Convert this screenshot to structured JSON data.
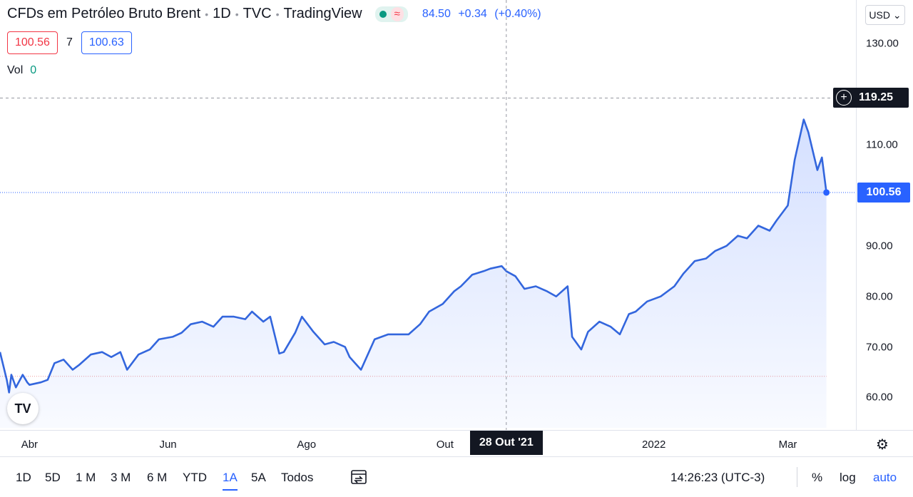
{
  "legend": {
    "title": "CFDs em Petróleo Bruto Brent",
    "interval": "1D",
    "source": "TVC",
    "brand": "TradingView",
    "approx_symbol": "≈",
    "price": "84.50",
    "change": "+0.34",
    "change_pct": "(+0.40%)"
  },
  "quote": {
    "bid": "100.56",
    "spread": "7",
    "ask": "100.63"
  },
  "volume": {
    "label": "Vol",
    "value": "0"
  },
  "currency": "USD",
  "crosshair": {
    "price_label": "119.25",
    "date_label": "28 Out '21"
  },
  "last_price_label": "100.56",
  "range_buttons": [
    {
      "label": "1D",
      "active": false
    },
    {
      "label": "5D",
      "active": false
    },
    {
      "label": "1 M",
      "active": false
    },
    {
      "label": "3 M",
      "active": false
    },
    {
      "label": "6 M",
      "active": false
    },
    {
      "label": "YTD",
      "active": false
    },
    {
      "label": "1A",
      "active": true
    },
    {
      "label": "5A",
      "active": false
    },
    {
      "label": "Todos",
      "active": false
    }
  ],
  "clock": "14:26:23 (UTC-3)",
  "controls": {
    "percent": "%",
    "log": "log",
    "auto": "auto"
  },
  "colors": {
    "line": "#3366dd",
    "area": "#2962ff",
    "last": "#2962ff",
    "low_line": "#ef9a9a"
  },
  "chart_data": {
    "type": "area",
    "ylim": [
      54,
      133
    ],
    "yticks": [
      60,
      70,
      80,
      90,
      100,
      110,
      120,
      130
    ],
    "ytick_labels": [
      "60.00",
      "70.00",
      "80.00",
      "90.00",
      "",
      "110.00",
      "",
      "130.00"
    ],
    "xlim": [
      "2021-03-19",
      "2022-03-31"
    ],
    "xticks": [
      {
        "date": "2021-04-01",
        "label": "Abr"
      },
      {
        "date": "2021-06-01",
        "label": "Jun"
      },
      {
        "date": "2021-08-01",
        "label": "Ago"
      },
      {
        "date": "2021-10-01",
        "label": "Out"
      },
      {
        "date": "2022-01-01",
        "label": "2022"
      },
      {
        "date": "2022-03-01",
        "label": "Mar"
      }
    ],
    "crosshair": {
      "date": "2021-10-28",
      "price": 119.25
    },
    "last_value": 100.56,
    "low_reference": 64.2,
    "series": [
      {
        "x": [
          "2021-03-19",
          "2021-03-22",
          "2021-03-23",
          "2021-03-24",
          "2021-03-26",
          "2021-03-29",
          "2021-03-31",
          "2021-04-01",
          "2021-04-06",
          "2021-04-09",
          "2021-04-12",
          "2021-04-16",
          "2021-04-20",
          "2021-04-23",
          "2021-04-28",
          "2021-05-03",
          "2021-05-07",
          "2021-05-11",
          "2021-05-14",
          "2021-05-19",
          "2021-05-24",
          "2021-05-28",
          "2021-06-03",
          "2021-06-07",
          "2021-06-11",
          "2021-06-16",
          "2021-06-21",
          "2021-06-25",
          "2021-06-30",
          "2021-07-05",
          "2021-07-08",
          "2021-07-13",
          "2021-07-16",
          "2021-07-20",
          "2021-07-22",
          "2021-07-27",
          "2021-07-30",
          "2021-08-04",
          "2021-08-09",
          "2021-08-13",
          "2021-08-18",
          "2021-08-20",
          "2021-08-25",
          "2021-08-31",
          "2021-09-06",
          "2021-09-10",
          "2021-09-15",
          "2021-09-20",
          "2021-09-24",
          "2021-09-30",
          "2021-10-05",
          "2021-10-08",
          "2021-10-13",
          "2021-10-18",
          "2021-10-21",
          "2021-10-26",
          "2021-10-28",
          "2021-11-01",
          "2021-11-05",
          "2021-11-10",
          "2021-11-15",
          "2021-11-19",
          "2021-11-24",
          "2021-11-26",
          "2021-11-30",
          "2021-12-03",
          "2021-12-08",
          "2021-12-13",
          "2021-12-17",
          "2021-12-21",
          "2021-12-24",
          "2021-12-29",
          "2022-01-04",
          "2022-01-10",
          "2022-01-14",
          "2022-01-19",
          "2022-01-24",
          "2022-01-28",
          "2022-02-02",
          "2022-02-07",
          "2022-02-11",
          "2022-02-16",
          "2022-02-21",
          "2022-02-24",
          "2022-03-01",
          "2022-03-04",
          "2022-03-08",
          "2022-03-10",
          "2022-03-14",
          "2022-03-16",
          "2022-03-18"
        ],
        "y": [
          69,
          63.5,
          61,
          64.5,
          62,
          64.5,
          63,
          62.5,
          63,
          63.5,
          66.8,
          67.5,
          65.5,
          66.5,
          68.5,
          69,
          68,
          69,
          65.5,
          68.5,
          69.5,
          71.5,
          72,
          72.8,
          74.5,
          75,
          74,
          76,
          76,
          75.5,
          77,
          75,
          76,
          68.7,
          69,
          72.8,
          76,
          73,
          70.5,
          71,
          70,
          68,
          65.5,
          71.5,
          72.5,
          72.5,
          72.5,
          74.5,
          77,
          78.5,
          81,
          82,
          84.3,
          85,
          85.5,
          86,
          85,
          84,
          81.5,
          82,
          81,
          80,
          82,
          72,
          69.5,
          73,
          75,
          74,
          72.5,
          76.5,
          77,
          79,
          80,
          82,
          84.5,
          87,
          87.5,
          89,
          90,
          92,
          91.5,
          94,
          93,
          95,
          98,
          107,
          115,
          112.5,
          105,
          107.5,
          100.56
        ]
      }
    ]
  }
}
